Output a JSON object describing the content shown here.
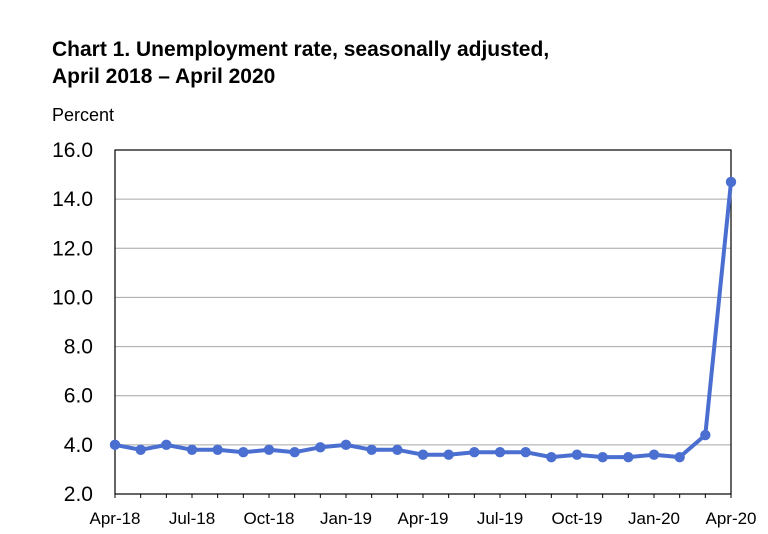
{
  "chart_data": {
    "type": "line",
    "title_lines": [
      "Chart 1. Unemployment rate, seasonally adjusted,",
      "April 2018 – April 2020"
    ],
    "ylabel": "Percent",
    "xlabel": "",
    "ylim": [
      2.0,
      16.0
    ],
    "yticks": [
      "2.0",
      "4.0",
      "6.0",
      "8.0",
      "10.0",
      "12.0",
      "14.0",
      "16.0"
    ],
    "grid": "horizontal",
    "legend": "none",
    "x": [
      "Apr-18",
      "May-18",
      "Jun-18",
      "Jul-18",
      "Aug-18",
      "Sep-18",
      "Oct-18",
      "Nov-18",
      "Dec-18",
      "Jan-19",
      "Feb-19",
      "Mar-19",
      "Apr-19",
      "May-19",
      "Jun-19",
      "Jul-19",
      "Aug-19",
      "Sep-19",
      "Oct-19",
      "Nov-19",
      "Dec-19",
      "Jan-20",
      "Feb-20",
      "Mar-20",
      "Apr-20"
    ],
    "xtick_labels": [
      "Apr-18",
      "Jul-18",
      "Oct-18",
      "Jan-19",
      "Apr-19",
      "Jul-19",
      "Oct-19",
      "Jan-20",
      "Apr-20"
    ],
    "series": [
      {
        "values": [
          4.0,
          3.8,
          4.0,
          3.8,
          3.8,
          3.7,
          3.8,
          3.7,
          3.9,
          4.0,
          3.8,
          3.8,
          3.6,
          3.6,
          3.7,
          3.7,
          3.7,
          3.5,
          3.6,
          3.5,
          3.5,
          3.6,
          3.5,
          4.4,
          14.7
        ],
        "color": "#4a6fd0"
      }
    ]
  }
}
